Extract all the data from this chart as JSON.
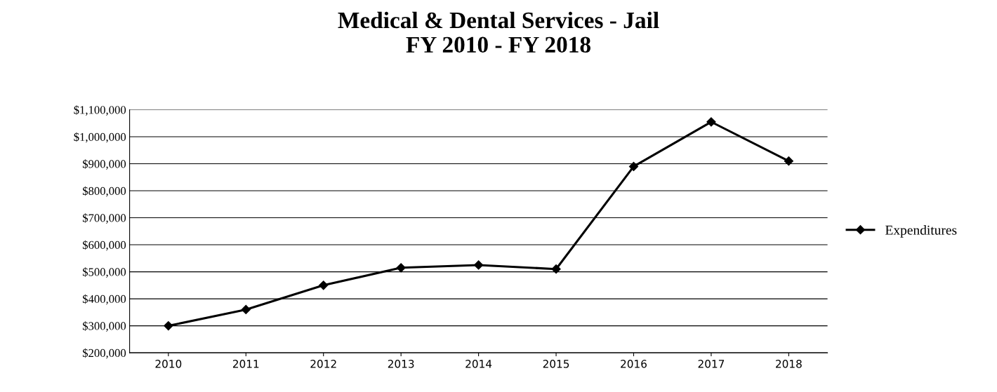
{
  "chart_data": {
    "type": "line",
    "title": "Medical & Dental Services - Jail\nFY 2010 - FY 2018",
    "categories": [
      "2010",
      "2011",
      "2012",
      "2013",
      "2014",
      "2015",
      "2016",
      "2017",
      "2018"
    ],
    "series": [
      {
        "name": "Expenditures",
        "color": "#000000",
        "values": [
          300000,
          360000,
          450000,
          515000,
          525000,
          510000,
          890000,
          1055000,
          910000
        ]
      }
    ],
    "ylim": [
      200000,
      1100000
    ],
    "yticks": [
      {
        "value": 200000,
        "label": "$200,000"
      },
      {
        "value": 300000,
        "label": "$300,000"
      },
      {
        "value": 400000,
        "label": "$400,000"
      },
      {
        "value": 500000,
        "label": "$500,000"
      },
      {
        "value": 600000,
        "label": "$600,000"
      },
      {
        "value": 700000,
        "label": "$700,000"
      },
      {
        "value": 800000,
        "label": "$800,000"
      },
      {
        "value": 900000,
        "label": "$900,000"
      },
      {
        "value": 1000000,
        "label": "$1,000,000"
      },
      {
        "value": 1100000,
        "label": "$1,100,000"
      }
    ],
    "grid": "y",
    "legend": "right",
    "marker": "diamond",
    "line_style": "solid"
  }
}
